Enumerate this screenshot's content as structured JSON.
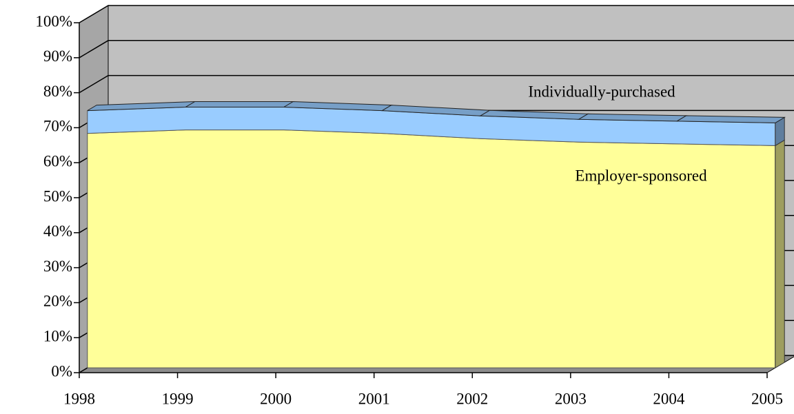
{
  "chart_data": {
    "type": "area3d",
    "categories": [
      "1998",
      "1999",
      "2000",
      "2001",
      "2002",
      "2003",
      "2004",
      "2005"
    ],
    "series": [
      {
        "name": "Employer-sponsored",
        "color": "#ffff99",
        "values": [
          67,
          68,
          68,
          67,
          65.5,
          64.5,
          64,
          63.5
        ]
      },
      {
        "name": "Individually-purchased",
        "color": "#99ccff",
        "values": [
          6.5,
          6.5,
          6.5,
          6.5,
          6.5,
          6.5,
          6.5,
          6.5
        ]
      }
    ],
    "stacked": true,
    "ylim": [
      0,
      100
    ],
    "yticks": [
      {
        "value": 0,
        "label": "0%"
      },
      {
        "value": 10,
        "label": "10%"
      },
      {
        "value": 20,
        "label": "20%"
      },
      {
        "value": 30,
        "label": "30%"
      },
      {
        "value": 40,
        "label": "40%"
      },
      {
        "value": 50,
        "label": "50%"
      },
      {
        "value": 60,
        "label": "60%"
      },
      {
        "value": 70,
        "label": "70%"
      },
      {
        "value": 80,
        "label": "80%"
      },
      {
        "value": 90,
        "label": "90%"
      },
      {
        "value": 100,
        "label": "100%"
      }
    ],
    "grid": true
  }
}
